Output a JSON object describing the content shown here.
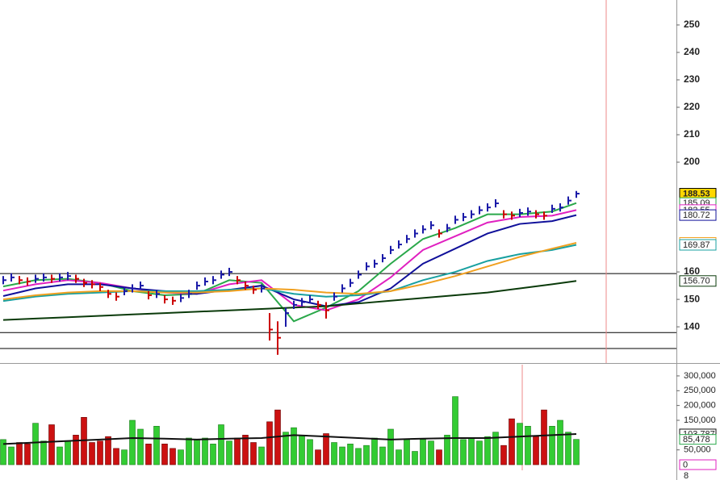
{
  "chart_data": [
    {
      "type": "ohlc",
      "ylim": [
        126.8,
        259.1
      ],
      "xlim": [
        -0.4,
        83.4
      ],
      "yticks": [
        140,
        150,
        160,
        200,
        210,
        220,
        230,
        240,
        250
      ],
      "up_color": "#1a1aa8",
      "down_color": "#cc0000",
      "close": [
        157,
        158,
        157,
        156.5,
        157.5,
        158,
        157.5,
        158,
        158.5,
        157.5,
        156,
        155.5,
        154.5,
        152,
        151,
        153,
        154,
        155,
        151.5,
        152,
        150,
        149.5,
        150.5,
        152,
        155,
        156.5,
        157,
        159,
        160,
        157,
        155,
        153.5,
        154,
        139,
        136,
        145,
        148,
        149,
        150,
        148,
        146,
        151,
        154,
        156,
        159,
        162,
        163,
        165,
        168,
        170,
        172,
        174,
        175.5,
        177,
        174,
        176,
        179,
        180,
        181,
        182.5,
        183.5,
        185,
        181,
        180.5,
        181.5,
        182,
        181,
        180.5,
        183,
        183.5,
        186,
        188.53
      ],
      "high": [
        158.5,
        159.5,
        158.5,
        158,
        159,
        159.5,
        159,
        159.5,
        160,
        159,
        157.5,
        157,
        156,
        153.5,
        152.5,
        154.5,
        155.5,
        156.5,
        153,
        153.5,
        151.5,
        151,
        152,
        153.5,
        156.5,
        158,
        158.5,
        160.5,
        161.5,
        158.5,
        156.5,
        155,
        155.5,
        145,
        142,
        147,
        149.5,
        150.5,
        151.5,
        149.5,
        149,
        152.5,
        155.5,
        157.5,
        160.5,
        163.5,
        164.5,
        166.5,
        169.5,
        171.5,
        173.5,
        175.5,
        177,
        178.5,
        175.5,
        177.5,
        180.5,
        181.5,
        182.5,
        184,
        185,
        186.5,
        182.5,
        182,
        183,
        183.5,
        182.5,
        182,
        184.5,
        185,
        187.5,
        189.5
      ],
      "low": [
        155.5,
        156.5,
        155.5,
        155,
        156,
        156.5,
        156,
        156.5,
        157,
        156,
        154.5,
        154,
        153,
        150.5,
        149.5,
        151.5,
        152.5,
        153.5,
        150,
        150.5,
        148.5,
        148,
        149,
        150.5,
        153.5,
        155,
        155.5,
        157.5,
        158.5,
        155.5,
        153.5,
        152,
        152.5,
        135,
        129.8,
        140,
        146.5,
        147.5,
        148.5,
        146.5,
        143,
        149.5,
        152.5,
        154.5,
        157.5,
        160.5,
        161.5,
        163.5,
        166.5,
        168.5,
        170.5,
        172.5,
        174,
        175.5,
        172.5,
        174.5,
        177.5,
        178.5,
        179.5,
        181,
        182,
        183.5,
        179.5,
        179,
        180,
        180.5,
        179.5,
        179,
        181.5,
        182,
        184.5,
        187
      ],
      "series": [
        {
          "color": "#2aa84a",
          "x": [
            0,
            4,
            8,
            12,
            16,
            20,
            24,
            28,
            32,
            36,
            40,
            44,
            48,
            52,
            56,
            60,
            64,
            68,
            71
          ],
          "values": [
            154.7,
            157,
            157.5,
            156,
            153,
            151.5,
            152,
            157,
            156,
            142,
            147,
            153,
            163,
            172,
            176,
            181,
            181,
            182,
            185.09
          ]
        },
        {
          "color": "#e020c0",
          "x": [
            0,
            4,
            8,
            12,
            16,
            20,
            24,
            28,
            32,
            36,
            40,
            44,
            48,
            52,
            56,
            60,
            64,
            68,
            71
          ],
          "values": [
            153.2,
            155.5,
            157,
            156,
            154,
            152.5,
            152,
            155.5,
            157,
            148,
            146,
            150,
            158,
            168,
            173,
            178,
            180,
            180.5,
            182.55
          ]
        },
        {
          "color": "#10109a",
          "x": [
            0,
            4,
            8,
            12,
            16,
            20,
            24,
            28,
            32,
            36,
            40,
            44,
            48,
            52,
            56,
            60,
            64,
            68,
            71
          ],
          "values": [
            151.2,
            154,
            155.5,
            155.5,
            154,
            153,
            152,
            153.5,
            155,
            150,
            147.5,
            149,
            154,
            163,
            168.5,
            174,
            177.5,
            178.5,
            180.72
          ]
        },
        {
          "color": "#18a0a0",
          "x": [
            0,
            4,
            8,
            12,
            16,
            20,
            24,
            28,
            32,
            36,
            40,
            44,
            48,
            52,
            56,
            60,
            64,
            68,
            71
          ],
          "values": [
            149.4,
            151,
            152,
            152.5,
            153,
            153,
            153,
            153.5,
            154,
            152,
            151,
            151.5,
            153,
            157,
            160,
            164,
            166.5,
            168,
            169.87
          ]
        },
        {
          "color": "#f0a020",
          "x": [
            0,
            4,
            8,
            12,
            16,
            20,
            24,
            28,
            32,
            36,
            40,
            44,
            48,
            52,
            56,
            60,
            64,
            68,
            71
          ],
          "values": [
            150,
            151.5,
            152.5,
            153,
            153,
            152.5,
            152.5,
            153,
            154,
            153.5,
            152.5,
            152,
            153,
            155.5,
            158.5,
            162,
            165.5,
            168.5,
            170.6
          ]
        },
        {
          "color": "#0a3a0a",
          "x": [
            0,
            4,
            8,
            12,
            16,
            20,
            24,
            28,
            32,
            36,
            40,
            44,
            48,
            52,
            56,
            60,
            64,
            68,
            71
          ],
          "values": [
            142.5,
            143,
            143.5,
            144,
            144.5,
            145,
            145.5,
            146,
            146.5,
            147,
            147.5,
            148.5,
            149.5,
            150.5,
            151.5,
            152.5,
            154,
            155.5,
            156.7
          ]
        }
      ],
      "hlines": [
        159.4,
        137.9,
        132.1
      ],
      "vline_x": 74.7,
      "badges": [
        {
          "value": 188.53,
          "color": "#000000",
          "background": "#ffd700"
        },
        {
          "value": 185.09,
          "color": "#2aa84a"
        },
        {
          "value": 182.55,
          "color": "#e020c0"
        },
        {
          "value": 180.72,
          "color": "#10109a"
        },
        {
          "value": 170.6,
          "label": "170.60",
          "color": "#f0a020"
        },
        {
          "value": 169.87,
          "color": "#18a0a0"
        },
        {
          "value": 156.7,
          "label": "156.70",
          "color": "#0a3a0a"
        }
      ]
    },
    {
      "type": "volume",
      "ylim": [
        -19000,
        338000
      ],
      "xlim": [
        -0.4,
        83.4
      ],
      "yticks": [
        {
          "value": 300000,
          "label": "300,000"
        },
        {
          "value": 250000,
          "label": "250,000"
        },
        {
          "value": 200000,
          "label": "200,000"
        },
        {
          "value": 150000,
          "label": "150,000"
        },
        {
          "value": 50000,
          "label": "50,000"
        }
      ],
      "up_color": "#33cc33",
      "down_color": "#cc1111",
      "values": [
        85000,
        60000,
        75000,
        70000,
        140000,
        80000,
        135000,
        60000,
        80000,
        100000,
        160000,
        75000,
        80000,
        95000,
        55000,
        50000,
        150000,
        120000,
        70000,
        130000,
        70000,
        55000,
        50000,
        90000,
        85000,
        90000,
        70000,
        135000,
        80000,
        90000,
        100000,
        75000,
        60000,
        145000,
        185000,
        110000,
        125000,
        100000,
        85000,
        50000,
        105000,
        75000,
        60000,
        70000,
        55000,
        65000,
        90000,
        60000,
        120000,
        50000,
        85000,
        45000,
        85000,
        80000,
        50000,
        100000,
        230000,
        85000,
        90000,
        80000,
        95000,
        110000,
        65000,
        155000,
        140000,
        130000,
        95000,
        185000,
        130000,
        150000,
        110000,
        85478
      ],
      "series": [
        {
          "color": "#111111",
          "x": [
            0,
            4,
            8,
            12,
            16,
            20,
            24,
            28,
            32,
            36,
            40,
            44,
            48,
            52,
            56,
            60,
            64,
            68,
            71
          ],
          "values": [
            70000,
            75000,
            80000,
            85000,
            90000,
            88000,
            85000,
            88000,
            90000,
            100000,
            95000,
            90000,
            85000,
            88000,
            90000,
            90000,
            95000,
            100000,
            103787
          ]
        }
      ],
      "vline_x": 64.3,
      "badges": [
        {
          "value": 103787,
          "label": "103,787",
          "color": "#111111"
        },
        {
          "value": 85478,
          "label": "85,478",
          "color": "#2aa84a"
        },
        {
          "value": 0,
          "color": "#e020c0"
        }
      ],
      "footer": "8"
    }
  ]
}
